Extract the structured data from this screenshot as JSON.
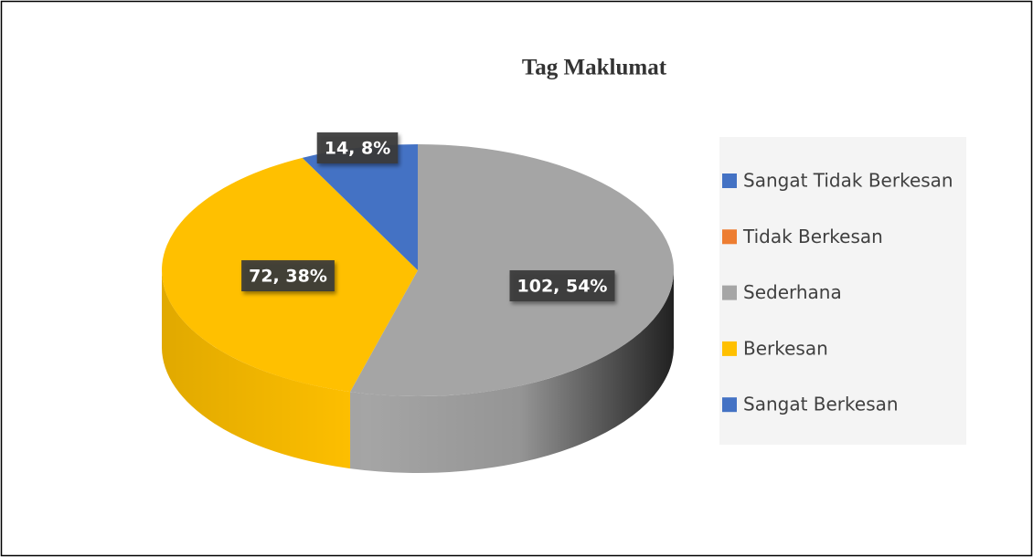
{
  "chart_data": {
    "type": "pie3d",
    "title": "Tag Maklumat",
    "categories": [
      "Sangat Tidak Berkesan",
      "Tidak Berkesan",
      "Sederhana",
      "Berkesan",
      "Sangat Berkesan"
    ],
    "values": [
      0,
      0,
      102,
      72,
      14
    ],
    "value_labels": [
      null,
      null,
      "102, 54%",
      "72, 38%",
      "14, 8%"
    ],
    "colors": [
      "#4472c4",
      "#ed7d31",
      "#a5a5a5",
      "#ffc000",
      "#4472c4"
    ],
    "legend": "right"
  }
}
